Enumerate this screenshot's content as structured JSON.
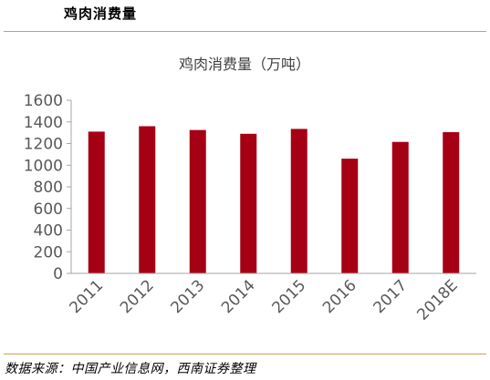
{
  "header": {
    "title": "鸡肉消费量"
  },
  "source": "数据来源：中国产业信息网，西南证券整理",
  "colors": {
    "bar": "#a50014",
    "rule": "#c9a15b",
    "axis": "#a6a6a6"
  },
  "chart_data": {
    "type": "bar",
    "title": "鸡肉消费量（万吨）",
    "xlabel": "",
    "ylabel": "",
    "categories": [
      "2011",
      "2012",
      "2013",
      "2014",
      "2015",
      "2016",
      "2017",
      "2018E"
    ],
    "values": [
      1310,
      1360,
      1325,
      1290,
      1335,
      1060,
      1215,
      1305
    ],
    "ylim": [
      0,
      1600
    ],
    "yticks": [
      0,
      200,
      400,
      600,
      800,
      1000,
      1200,
      1400,
      1600
    ],
    "grid": false,
    "legend": "none"
  }
}
